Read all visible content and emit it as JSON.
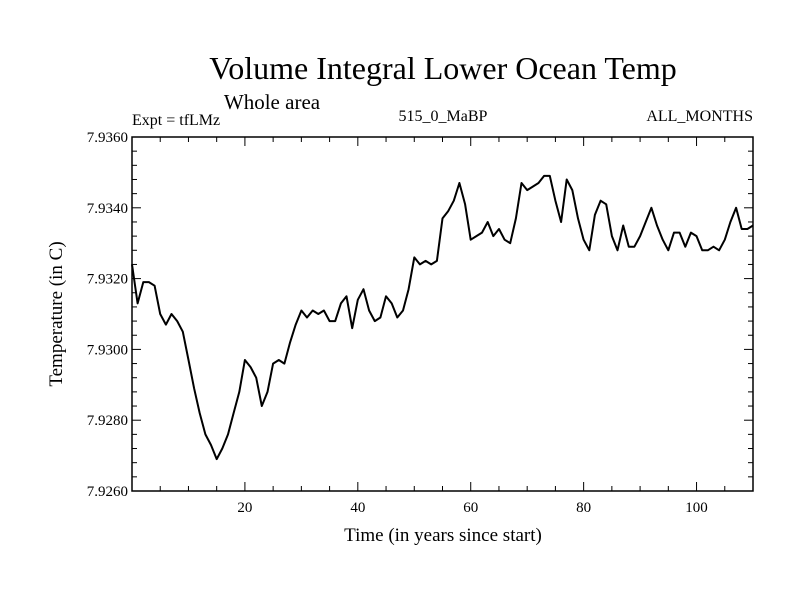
{
  "chart_data": {
    "type": "line",
    "title": "Volume Integral Lower Ocean Temp",
    "subtitle": "Whole area",
    "experiment": "Expt = tfLMz",
    "run": "515_0_MaBP",
    "months": "ALL_MONTHS",
    "xlabel": "Time (in years since start)",
    "ylabel": "Temperature (in C)",
    "xlim": [
      0,
      110
    ],
    "ylim": [
      7.926,
      7.936
    ],
    "xticks": [
      20,
      40,
      60,
      80,
      100
    ],
    "yticks": [
      "7.9260",
      "7.9280",
      "7.9300",
      "7.9320",
      "7.9340",
      "7.9360"
    ],
    "grid": false,
    "series": [
      {
        "name": "Volume Integral Lower Ocean Temp",
        "x": [
          0,
          1,
          2,
          3,
          4,
          5,
          6,
          7,
          8,
          9,
          10,
          11,
          12,
          13,
          14,
          15,
          16,
          17,
          18,
          19,
          20,
          21,
          22,
          23,
          24,
          25,
          26,
          27,
          28,
          29,
          30,
          31,
          32,
          33,
          34,
          35,
          36,
          37,
          38,
          39,
          40,
          41,
          42,
          43,
          44,
          45,
          46,
          47,
          48,
          49,
          50,
          51,
          52,
          53,
          54,
          55,
          56,
          57,
          58,
          59,
          60,
          61,
          62,
          63,
          64,
          65,
          66,
          67,
          68,
          69,
          70,
          71,
          72,
          73,
          74,
          75,
          76,
          77,
          78,
          79,
          80,
          81,
          82,
          83,
          84,
          85,
          86,
          87,
          88,
          89,
          90,
          91,
          92,
          93,
          94,
          95,
          96,
          97,
          98,
          99,
          100,
          101,
          102,
          103,
          104,
          105,
          106,
          107,
          108,
          109,
          110
        ],
        "y": [
          7.9324,
          7.9313,
          7.9319,
          7.9319,
          7.9318,
          7.931,
          7.9307,
          7.931,
          7.9308,
          7.9305,
          7.9297,
          7.9289,
          7.9282,
          7.9276,
          7.9273,
          7.9269,
          7.9272,
          7.9276,
          7.9282,
          7.9288,
          7.9297,
          7.9295,
          7.9292,
          7.9284,
          7.9288,
          7.9296,
          7.9297,
          7.9296,
          7.9302,
          7.9307,
          7.9311,
          7.9309,
          7.9311,
          7.931,
          7.9311,
          7.9308,
          7.9308,
          7.9313,
          7.9315,
          7.9306,
          7.9314,
          7.9317,
          7.9311,
          7.9308,
          7.9309,
          7.9315,
          7.9313,
          7.9309,
          7.9311,
          7.9317,
          7.9326,
          7.9324,
          7.9325,
          7.9324,
          7.9325,
          7.9337,
          7.9339,
          7.9342,
          7.9347,
          7.9341,
          7.9331,
          7.9332,
          7.9333,
          7.9336,
          7.9332,
          7.9334,
          7.9331,
          7.933,
          7.9337,
          7.9347,
          7.9345,
          7.9346,
          7.9347,
          7.9349,
          7.9349,
          7.9342,
          7.9336,
          7.9348,
          7.9345,
          7.9337,
          7.9331,
          7.9328,
          7.9338,
          7.9342,
          7.9341,
          7.9332,
          7.9328,
          7.9335,
          7.9329,
          7.9329,
          7.9332,
          7.9336,
          7.934,
          7.9335,
          7.9331,
          7.9328,
          7.9333,
          7.9333,
          7.9329,
          7.9333,
          7.9332,
          7.9328,
          7.9328,
          7.9329,
          7.9328,
          7.9331,
          7.9336,
          7.934,
          7.9334,
          7.9334,
          7.9335
        ]
      }
    ]
  }
}
